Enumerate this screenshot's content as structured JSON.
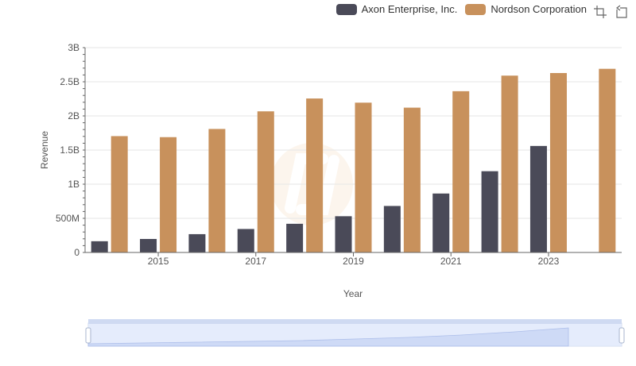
{
  "colors": {
    "axon": "#4a4a58",
    "nordson": "#c8915c",
    "grid": "#e6e6e6",
    "axis": "#666666"
  },
  "legend": {
    "items": [
      {
        "label": "Axon Enterprise, Inc.",
        "color": "#4a4a58"
      },
      {
        "label": "Nordson Corporation",
        "color": "#c8915c"
      }
    ]
  },
  "toolbox": {
    "icons": [
      "zoom-icon",
      "restore-icon"
    ]
  },
  "chart_data": {
    "type": "bar",
    "title": "",
    "xlabel": "Year",
    "ylabel": "Revenue",
    "x": [
      2014,
      2015,
      2016,
      2017,
      2018,
      2019,
      2020,
      2021,
      2022,
      2023,
      2024
    ],
    "x_tick_labels": [
      "2015",
      "2017",
      "2019",
      "2021",
      "2023"
    ],
    "y_tick_labels": [
      "0",
      "500M",
      "1B",
      "1.5B",
      "2B",
      "2.5B",
      "3B"
    ],
    "ylim": [
      0,
      3000000000
    ],
    "grid": true,
    "legend_position": "top-right",
    "series": [
      {
        "name": "Axon Enterprise, Inc.",
        "values": [
          164500000,
          197900000,
          268200000,
          343800000,
          420100000,
          530900000,
          681000000,
          863400000,
          1190000000,
          1560000000,
          null
        ]
      },
      {
        "name": "Nordson Corporation",
        "values": [
          1704000000,
          1689000000,
          1809000000,
          2067000000,
          2255000000,
          2194000000,
          2121000000,
          2362000000,
          2590000000,
          2628000000,
          2690000000
        ]
      }
    ],
    "datazoom": {
      "start_percent": 0,
      "end_percent": 100
    }
  }
}
